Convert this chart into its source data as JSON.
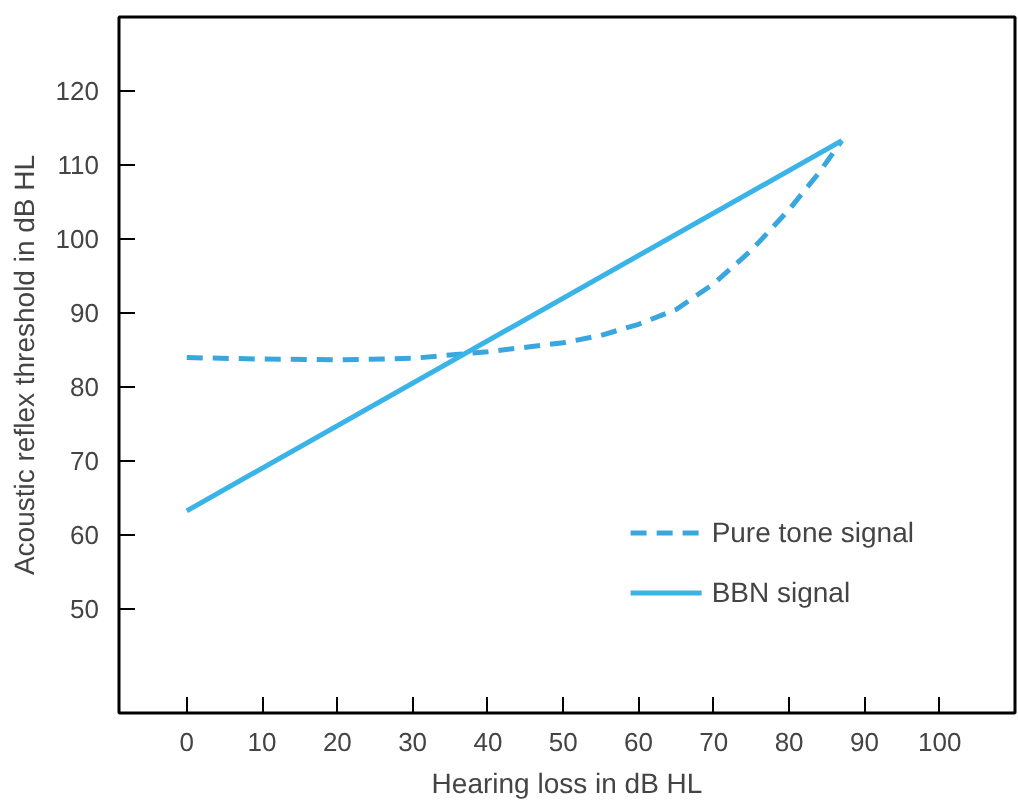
{
  "chart_data": {
    "type": "line",
    "xlabel": "Hearing loss in dB HL",
    "ylabel": "Acoustic reflex threshold in dB HL",
    "xlim": [
      -9,
      110
    ],
    "ylim": [
      36,
      130
    ],
    "xticks": [
      0,
      10,
      20,
      30,
      40,
      50,
      60,
      70,
      80,
      90,
      100
    ],
    "yticks": [
      50,
      60,
      70,
      80,
      90,
      100,
      110,
      120
    ],
    "grid": false,
    "legend": "bottom right",
    "series": [
      {
        "name": "Pure tone signal",
        "color": "#3aa6de",
        "line_style": "dashed",
        "x": [
          0,
          10,
          20,
          30,
          40,
          50,
          55,
          60,
          65,
          70,
          75,
          80,
          84,
          87
        ],
        "values": [
          84,
          83.8,
          83.7,
          83.9,
          84.8,
          86,
          87,
          88.5,
          90.5,
          94,
          98.5,
          104,
          109,
          113.3
        ]
      },
      {
        "name": "BBN signal",
        "color": "#3ab4e6",
        "line_style": "solid",
        "x": [
          0,
          87
        ],
        "values": [
          63.3,
          113.3
        ]
      }
    ]
  }
}
